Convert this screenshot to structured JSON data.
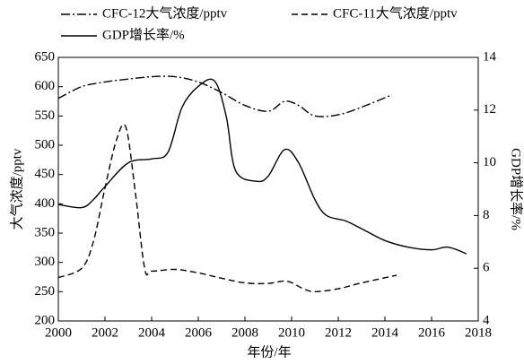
{
  "chart_data": {
    "type": "line",
    "xlabel": "年份/年",
    "ylabel": "大气浓度/pptv",
    "y2label": "GDP增长率/%",
    "xlim": [
      2000,
      2018
    ],
    "xticks": [
      2000,
      2002,
      2004,
      2006,
      2008,
      2010,
      2012,
      2014,
      2016,
      2018
    ],
    "ylim": [
      200,
      650
    ],
    "yticks": [
      200,
      250,
      300,
      350,
      400,
      450,
      500,
      550,
      600,
      650
    ],
    "y2lim": [
      4,
      14
    ],
    "y2ticks": [
      4,
      6,
      8,
      10,
      12,
      14
    ],
    "legend": "top",
    "series": [
      {
        "name": "CFC-12大气浓度/pptv",
        "color": "#000000",
        "dash": "dash-dot",
        "x": [
          2000,
          2001,
          2002,
          2003,
          2004,
          2005,
          2006,
          2007,
          2008,
          2009,
          2009.7,
          2010.3,
          2011,
          2012,
          2013,
          2014.3
        ],
        "values": [
          580,
          600,
          608,
          613,
          617,
          617,
          608,
          590,
          568,
          558,
          575,
          568,
          550,
          552,
          565,
          586
        ]
      },
      {
        "name": "CFC-11大气浓度/pptv",
        "color": "#000000",
        "dash": "dashed",
        "x": [
          2000,
          2001,
          2001.5,
          2002,
          2002.5,
          2002.9,
          2003.3,
          2003.7,
          2004,
          2005,
          2006,
          2007,
          2008,
          2009,
          2009.8,
          2010.5,
          2011,
          2012,
          2013,
          2014.5
        ],
        "values": [
          274,
          290,
          335,
          427,
          510,
          530,
          420,
          290,
          285,
          288,
          282,
          273,
          265,
          264,
          268,
          255,
          250,
          255,
          265,
          278
        ]
      },
      {
        "name": "GDP增长率/%",
        "color": "#000000",
        "dash": "solid",
        "axis": "y2",
        "x": [
          2000,
          2001,
          2001.5,
          2002,
          2003,
          2004,
          2004.7,
          2005.3,
          2006,
          2006.7,
          2007.2,
          2007.6,
          2008.5,
          2009,
          2009.7,
          2010.3,
          2011,
          2011.5,
          2012.3,
          2013,
          2014,
          2015,
          2016,
          2016.7,
          2017.5
        ],
        "values": [
          8.42,
          8.3,
          8.6,
          9.1,
          10.0,
          10.15,
          10.4,
          12.1,
          12.9,
          13.1,
          11.75,
          9.7,
          9.3,
          9.5,
          10.5,
          10.0,
          8.6,
          8.0,
          7.8,
          7.5,
          7.05,
          6.8,
          6.7,
          6.8,
          6.55
        ]
      }
    ]
  }
}
